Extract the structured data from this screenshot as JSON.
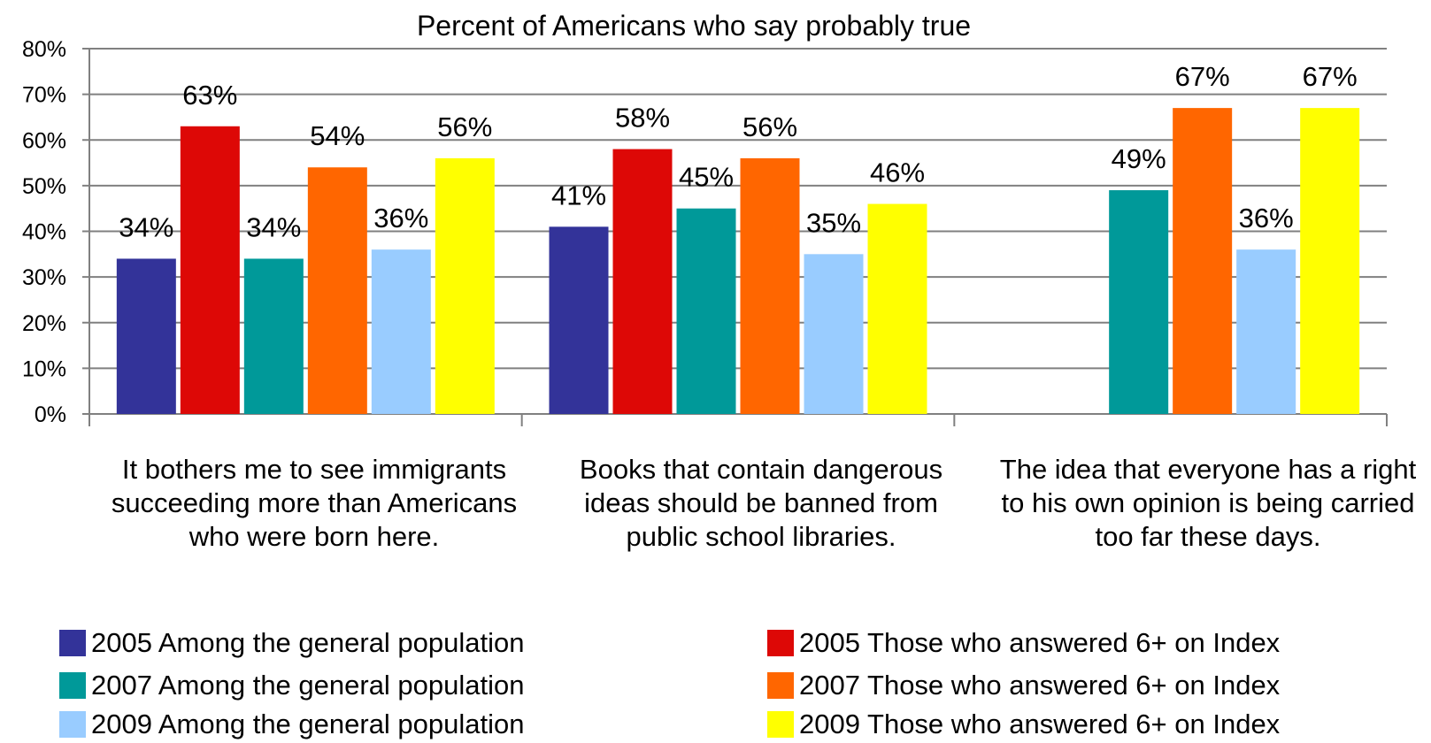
{
  "chart_data": {
    "type": "bar",
    "title": "Percent of Americans who say probably true",
    "ylim": [
      0,
      80
    ],
    "yticks": [
      0,
      10,
      20,
      30,
      40,
      50,
      60,
      70,
      80
    ],
    "ytick_labels": [
      "0%",
      "10%",
      "20%",
      "30%",
      "40%",
      "50%",
      "60%",
      "70%",
      "80%"
    ],
    "grid": true,
    "legend_position": "bottom",
    "categories": [
      "It bothers me to see immigrants succeeding more than Americans who were born here.",
      "Books that contain dangerous ideas should be banned from public school libraries.",
      "The idea that everyone has a right to his own opinion is being carried too far these days."
    ],
    "series": [
      {
        "name": "2005 Among the general population",
        "color": "#333399",
        "values": [
          34,
          41,
          null
        ]
      },
      {
        "name": "2005 Those who answered 6+ on Index",
        "color": "#DD0806",
        "values": [
          63,
          58,
          null
        ]
      },
      {
        "name": "2007 Among the general population",
        "color": "#009999",
        "values": [
          34,
          45,
          49
        ]
      },
      {
        "name": "2007 Those who answered 6+ on Index",
        "color": "#FF6600",
        "values": [
          54,
          56,
          67
        ]
      },
      {
        "name": "2009 Among the general population",
        "color": "#99CCFF",
        "values": [
          36,
          35,
          36
        ]
      },
      {
        "name": "2009 Those who answered 6+ on Index",
        "color": "#FFFF00",
        "values": [
          56,
          46,
          67
        ]
      }
    ],
    "value_label_suffix": "%"
  }
}
